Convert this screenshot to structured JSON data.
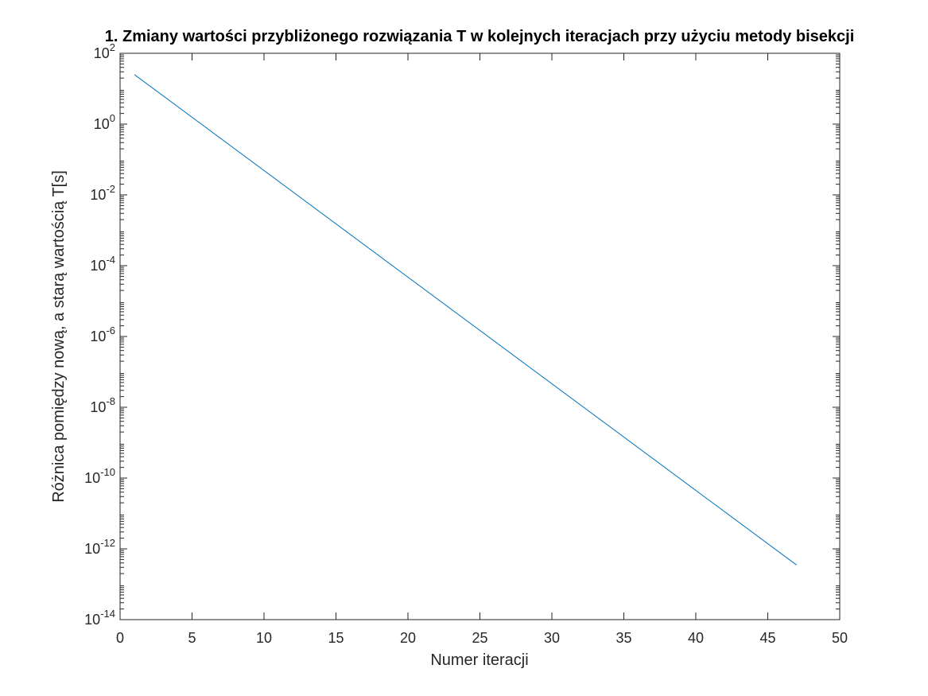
{
  "chart_data": {
    "type": "line",
    "title": "1. Zmiany wartości przybliżonego rozwiązania T  w kolejnych iteracjach przy użyciu metody bisekcji",
    "xlabel": "Numer iteracji",
    "ylabel": "Różnica pomiędzy nową, a starą wartością T[s]",
    "xlim": [
      0,
      50
    ],
    "ylim": [
      1e-14,
      100
    ],
    "yscale": "log",
    "x_ticks": [
      0,
      5,
      10,
      15,
      20,
      25,
      30,
      35,
      40,
      45,
      50
    ],
    "x_tick_labels": [
      "0",
      "5",
      "10",
      "15",
      "20",
      "25",
      "30",
      "35",
      "40",
      "45",
      "50"
    ],
    "y_ticks": [
      {
        "base": "10",
        "exp": "-14",
        "value": 1e-14
      },
      {
        "base": "10",
        "exp": "-12",
        "value": 1e-12
      },
      {
        "base": "10",
        "exp": "-10",
        "value": 1e-10
      },
      {
        "base": "10",
        "exp": "-8",
        "value": 1e-08
      },
      {
        "base": "10",
        "exp": "-6",
        "value": 1e-06
      },
      {
        "base": "10",
        "exp": "-4",
        "value": 0.0001
      },
      {
        "base": "10",
        "exp": "-2",
        "value": 0.01
      },
      {
        "base": "10",
        "exp": "0",
        "value": 1
      },
      {
        "base": "10",
        "exp": "2",
        "value": 100
      }
    ],
    "grid": false,
    "colors": {
      "line": "#0072bd",
      "axis": "#262626"
    },
    "series": [
      {
        "x": [
          1,
          47
        ],
        "y": [
          25,
          3.5e-13
        ]
      }
    ]
  }
}
